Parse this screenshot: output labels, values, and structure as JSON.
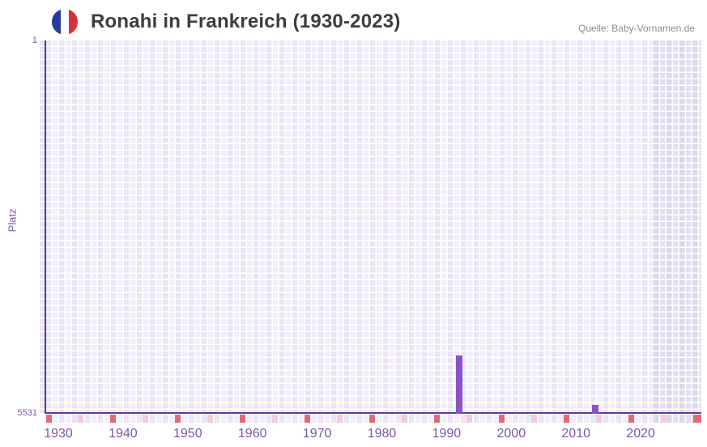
{
  "header": {
    "title": "Ronahi in Frankreich (1930-2023)",
    "flag_icon": "france-flag-icon",
    "source": "Quelle: Baby-Vornamen.de"
  },
  "chart_data": {
    "type": "bar",
    "title": "Ronahi in Frankreich (1930-2023)",
    "source": "Quelle: Baby-Vornamen.de",
    "xlabel": "",
    "ylabel": "Platz",
    "grid": true,
    "legend_position": "none",
    "y_axis": {
      "inverted": true,
      "min": 1,
      "max": 5531,
      "top_tick": "1",
      "bottom_tick": "5531"
    },
    "x_axis": {
      "first_year": 1930,
      "last_data_year": 2023,
      "axis_end_year": 2030,
      "tick_labels": [
        "1930",
        "1940",
        "1950",
        "1960",
        "1970",
        "1980",
        "1990",
        "2000",
        "2010",
        "2020"
      ]
    },
    "series": [
      {
        "name": "Platz von Ronahi in Frankreich",
        "points": [
          {
            "year": 1992,
            "rank": 4680
          },
          {
            "year": 2013,
            "rank": 5410
          }
        ]
      }
    ],
    "axis_markers": {
      "major_tick_years": [
        1930,
        1940,
        1950,
        1960,
        1970,
        1980,
        1990,
        2000,
        2010,
        2020,
        2030
      ],
      "minor_tick_years": [
        1935,
        1945,
        1955,
        1965,
        1975,
        1985,
        1995,
        2005,
        2015,
        2025
      ]
    },
    "future_region_start_year": 2024,
    "colors": {
      "bar": "#8b52c7",
      "axis_line": "#5b3a9a",
      "tick_label": "#7956b0",
      "major_marker": "#e0697a",
      "minor_marker": "#f2ccd8",
      "grid_cell_a": "#eae4f5",
      "grid_cell_b": "#f2eefa",
      "future_cell_a": "#ddd7ea",
      "future_cell_b": "#e5e0f1",
      "title_text": "#3d3d3d",
      "source_text": "#8c8c8c",
      "flag_blue": "#2a3b9e",
      "flag_red": "#d8303c"
    }
  }
}
